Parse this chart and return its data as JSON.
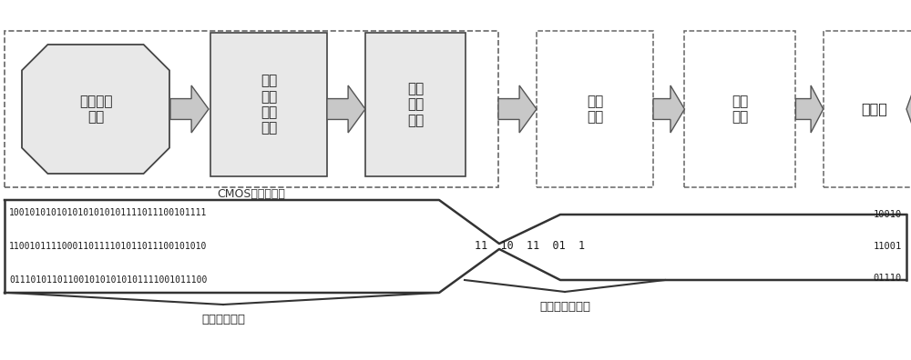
{
  "bg_color": "#ffffff",
  "box_fill": "#e8e8e8",
  "box_edge": "#444444",
  "dashed_edge": "#555555",
  "arrow_fill": "#cccccc",
  "arrow_edge": "#555555",
  "stream_color": "#333333",
  "text_color": "#222222",
  "font_size_main": 10,
  "font_size_small": 8.5,
  "font_size_mono": 7,
  "cmos_label": "CMOS图像传感器",
  "block1_text": "有源像素\n阵列",
  "block2_text": "模拟\n信号\n读出\n电路",
  "block3_text": "模数\n转换\n电路",
  "block4_text": "数据\n压缩",
  "block5_text": "数据\n传输",
  "block6_text": "解压缩",
  "raw_line1": "1001010101010101010101111011100101111",
  "raw_line2": "1100101111000110111101011011100101010",
  "raw_line3": "0111010110110010101010101111001011100",
  "compressed_label": "11  10  11  01  1",
  "right_line1": "10010",
  "right_line2": "11001",
  "right_line3": "01110",
  "label_raw": "原始图像数据",
  "label_compressed": "压缩后的数据流"
}
